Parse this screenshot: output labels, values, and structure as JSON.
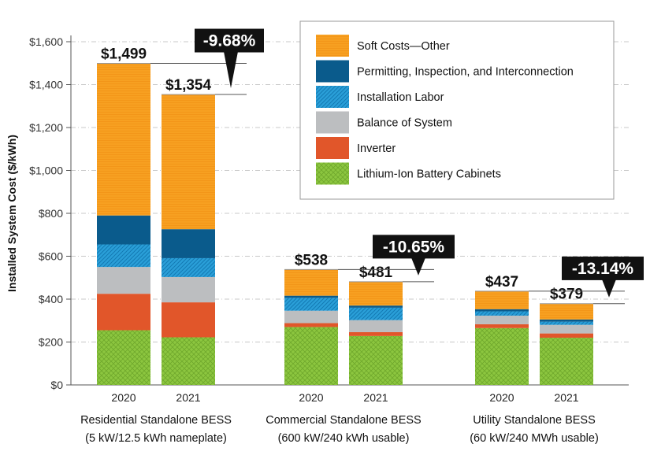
{
  "chart_data": {
    "type": "bar",
    "stacked": true,
    "ylabel": "Installed System Cost ($/kWh)",
    "ylim": [
      0,
      1600
    ],
    "yticks": [
      "$0",
      "$200",
      "$400",
      "$600",
      "$800",
      "$1,000",
      "$1,200",
      "$1,400",
      "$1,600"
    ],
    "grid": true,
    "legend_position": "top-right",
    "groups": [
      {
        "label_line1": "Residential Standalone BESS",
        "label_line2": "(5 kW/12.5 kWh nameplate)",
        "change": "-9.68%"
      },
      {
        "label_line1": "Commercial Standalone BESS",
        "label_line2": "(600 kW/240 kWh usable)",
        "change": "-10.65%"
      },
      {
        "label_line1": "Utility Standalone BESS",
        "label_line2": "(60 kW/240 MWh usable)",
        "change": "-13.14%"
      }
    ],
    "bars": [
      {
        "group": 0,
        "year": "2020",
        "total_label": "$1,499",
        "values": [
          255,
          170,
          125,
          105,
          135,
          709
        ]
      },
      {
        "group": 0,
        "year": "2021",
        "total_label": "$1,354",
        "values": [
          222,
          163,
          118,
          88,
          135,
          628
        ]
      },
      {
        "group": 1,
        "year": "2020",
        "total_label": "$538",
        "values": [
          270,
          18,
          58,
          60,
          10,
          122
        ]
      },
      {
        "group": 1,
        "year": "2021",
        "total_label": "$481",
        "values": [
          228,
          18,
          56,
          58,
          10,
          111
        ]
      },
      {
        "group": 2,
        "year": "2020",
        "total_label": "$437",
        "values": [
          265,
          18,
          40,
          20,
          10,
          84
        ]
      },
      {
        "group": 2,
        "year": "2021",
        "total_label": "$379",
        "values": [
          220,
          20,
          40,
          15,
          10,
          74
        ]
      }
    ],
    "series": [
      {
        "name": "Lithium-Ion Battery Cabinets",
        "color": "#8cc63f",
        "pattern": "crosshatch"
      },
      {
        "name": "Inverter",
        "color": "#e1562a",
        "pattern": "none"
      },
      {
        "name": "Balance of System",
        "color": "#bcbec0",
        "pattern": "none"
      },
      {
        "name": "Installation Labor",
        "color": "#2a9fd8",
        "pattern": "diagonal"
      },
      {
        "name": "Permitting, Inspection, and Interconnection",
        "color": "#0a5b8c",
        "pattern": "none"
      },
      {
        "name": "Soft Costs—Other",
        "color": "#f7a021",
        "pattern": "lines"
      }
    ],
    "legend_order": [
      5,
      4,
      3,
      2,
      1,
      0
    ]
  }
}
